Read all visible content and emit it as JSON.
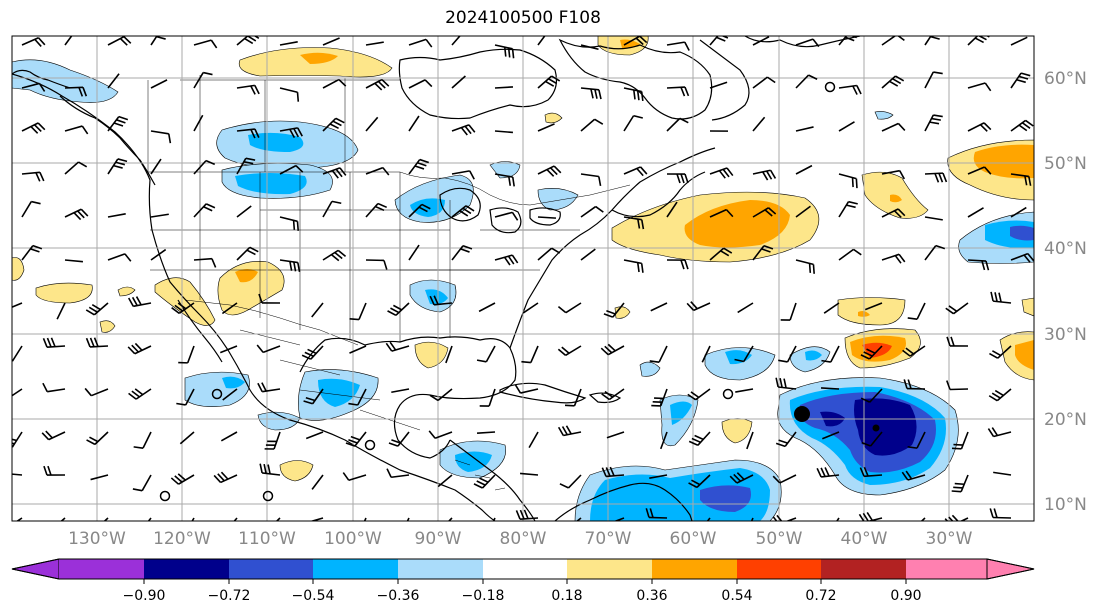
{
  "title": "2024100500 F108",
  "lat_labels": [
    "60°N",
    "50°N",
    "40°N",
    "30°N",
    "20°N",
    "10°N"
  ],
  "lon_labels": [
    "130°W",
    "120°W",
    "110°W",
    "100°W",
    "90°W",
    "80°W",
    "70°W",
    "60°W",
    "50°W",
    "40°W",
    "30°W"
  ],
  "colorbar": {
    "ticks": [
      "−0.90",
      "−0.72",
      "−0.54",
      "−0.36",
      "−0.18",
      "0.18",
      "0.36",
      "0.54",
      "0.72",
      "0.90"
    ],
    "colors": [
      "#9b30d9",
      "#00008b",
      "#3050d0",
      "#00b4ff",
      "#aadcfa",
      "#ffffff",
      "#fde68a",
      "#ffa500",
      "#ff4000",
      "#b22222",
      "#ff80b0"
    ]
  },
  "fill_colors": {
    "neg_018": "#aadcfa",
    "neg_036": "#00b4ff",
    "neg_054": "#3050d0",
    "neg_072": "#00008b",
    "pos_018": "#fde68a",
    "pos_036": "#ffa500",
    "pos_054": "#ff4000"
  }
}
